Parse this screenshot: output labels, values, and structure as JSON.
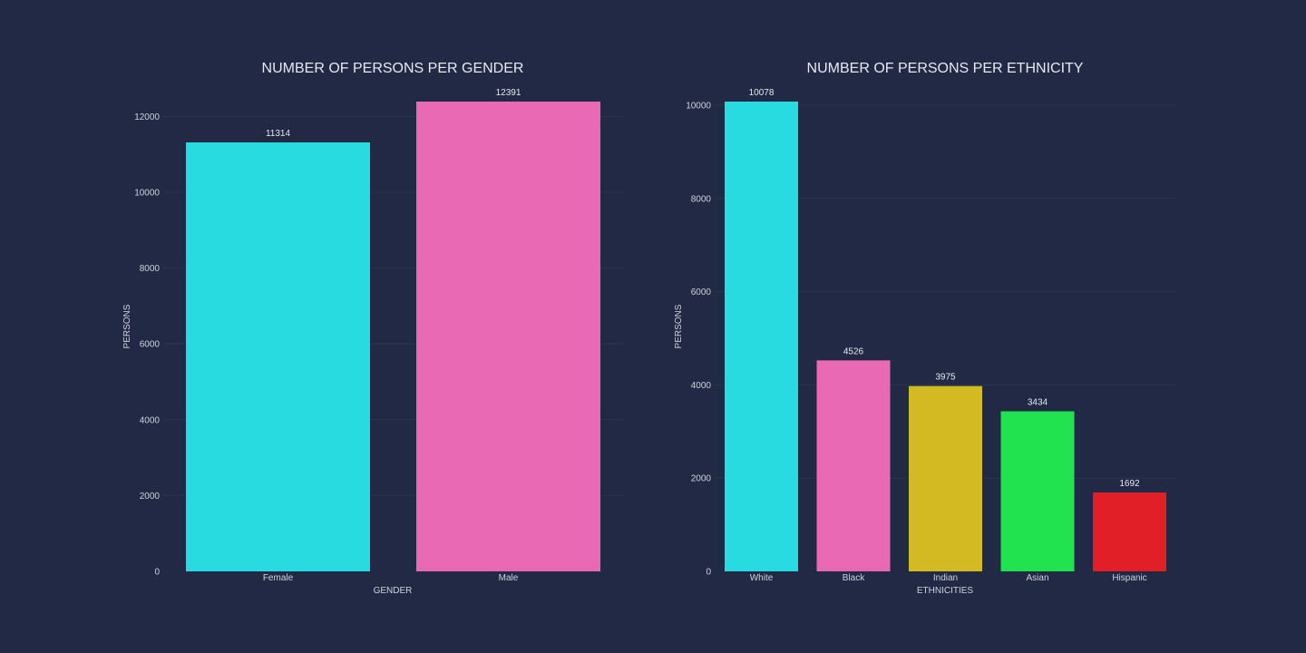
{
  "chart_data": [
    {
      "type": "bar",
      "title": "NUMBER OF PERSONS PER GENDER",
      "xlabel": "GENDER",
      "ylabel": "PERSONS",
      "categories": [
        "Female",
        "Male"
      ],
      "values": [
        11314,
        12391
      ],
      "data_labels": [
        "11314",
        "12391"
      ],
      "colors": [
        "#27dbe0",
        "#e969b5"
      ],
      "ylim": [
        0,
        12391
      ],
      "yticks": [
        0,
        2000,
        4000,
        6000,
        8000,
        10000,
        12000
      ],
      "ytick_labels": [
        "0",
        "2000",
        "4000",
        "6000",
        "8000",
        "10000",
        "12000"
      ],
      "grid": true,
      "legend": "none"
    },
    {
      "type": "bar",
      "title": "NUMBER OF PERSONS PER ETHNICITY",
      "xlabel": "ETHNICITIES",
      "ylabel": "PERSONS",
      "categories": [
        "White",
        "Black",
        "Indian",
        "Asian",
        "Hispanic"
      ],
      "values": [
        10078,
        4526,
        3975,
        3434,
        1692
      ],
      "data_labels": [
        "10078",
        "4526",
        "3975",
        "3434",
        "1692"
      ],
      "colors": [
        "#27dbe0",
        "#e969b5",
        "#d4ba22",
        "#21e24f",
        "#e02026"
      ],
      "ylim": [
        0,
        10078
      ],
      "yticks": [
        0,
        2000,
        4000,
        6000,
        8000,
        10000
      ],
      "ytick_labels": [
        "0",
        "2000",
        "4000",
        "6000",
        "8000",
        "10000"
      ],
      "grid": true,
      "legend": "none"
    }
  ]
}
